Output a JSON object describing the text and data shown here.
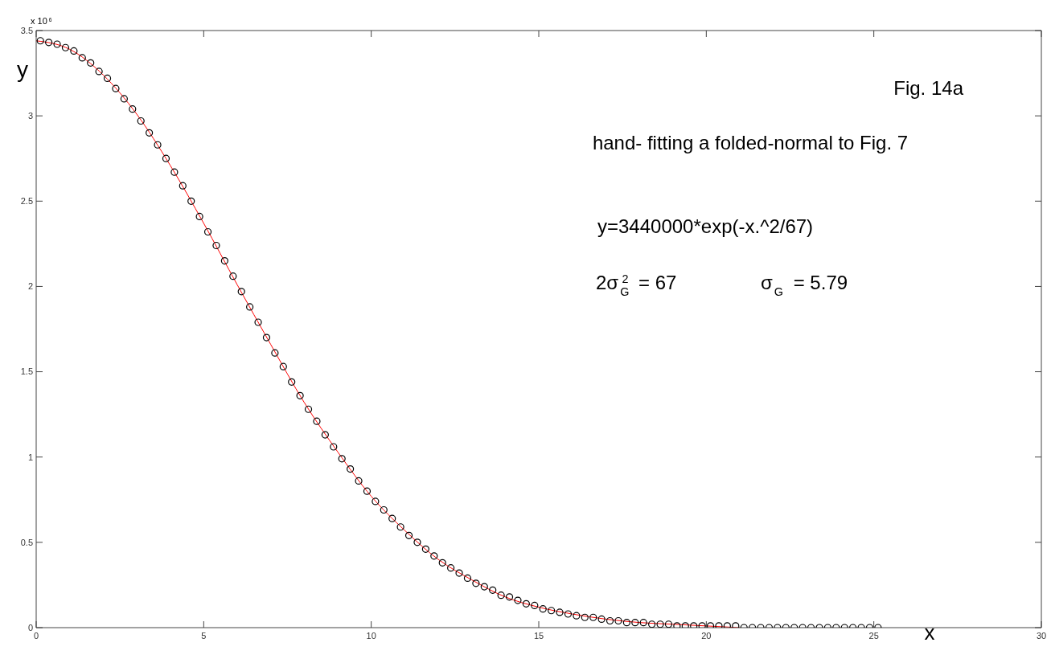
{
  "chart_data": {
    "type": "scatter",
    "xlabel": "x",
    "ylabel": "y",
    "xlim": [
      0,
      30
    ],
    "xticks": [
      0,
      5,
      10,
      15,
      20,
      25,
      30
    ],
    "ylim": [
      0,
      3.5
    ],
    "yticks": [
      0,
      0.5,
      1,
      1.5,
      2,
      2.5,
      3,
      3.5
    ],
    "grid": false,
    "legend": false,
    "marker": "circle",
    "annotations": [
      "x 10$^{6}$",
      "Fig. 14a",
      "hand- fitting a folded-normal to Fig. 7",
      "y=3440000*exp(-x.^2/67)",
      "2σ$_{G}$$^{2}$ = 67",
      "σ$_{G}$ = 5.79"
    ],
    "series": [
      {
        "type": "line",
        "color": "#ff0000",
        "line_style": "solid",
        "marker": "none",
        "x": [
          0,
          1,
          2,
          3,
          4,
          5,
          6,
          7,
          8,
          9,
          10,
          11,
          12,
          13,
          14,
          15,
          16,
          17,
          18,
          19,
          20,
          21
        ],
        "values": [
          3.44,
          3.39,
          3.24,
          3.01,
          2.71,
          2.37,
          2.01,
          1.66,
          1.32,
          1.03,
          0.77,
          0.57,
          0.4,
          0.28,
          0.18,
          0.12,
          0.08,
          0.05,
          0.03,
          0.02,
          0.01,
          0
        ]
      },
      {
        "color": "#000000",
        "x": [
          0.125,
          0.375,
          0.625,
          0.875,
          1.125,
          1.375,
          1.625,
          1.875,
          2.125,
          2.375,
          2.625,
          2.875,
          3.125,
          3.375,
          3.625,
          3.875,
          4.125,
          4.375,
          4.625,
          4.875,
          5.125,
          5.375,
          5.625,
          5.875,
          6.125,
          6.375,
          6.625,
          6.875,
          7.125,
          7.375,
          7.625,
          7.875,
          8.125,
          8.375,
          8.625,
          8.875,
          9.125,
          9.375,
          9.625,
          9.875,
          10.125,
          10.375,
          10.625,
          10.875,
          11.125,
          11.375,
          11.625,
          11.875,
          12.125,
          12.375,
          12.625,
          12.875,
          13.125,
          13.375,
          13.625,
          13.875,
          14.125,
          14.375,
          14.625,
          14.875,
          15.125,
          15.375,
          15.625,
          15.875,
          16.125,
          16.375,
          16.625,
          16.875,
          17.125,
          17.375,
          17.625,
          17.875,
          18.125,
          18.375,
          18.625,
          18.875,
          19.125,
          19.375,
          19.625,
          19.875,
          20.125,
          20.375,
          20.625,
          20.875,
          21.125,
          21.375,
          21.625,
          21.875,
          22.125,
          22.375,
          22.625,
          22.875,
          23.125,
          23.375,
          23.625,
          23.875,
          24.125,
          24.375,
          24.625,
          24.875,
          25.125
        ],
        "values": [
          3.44,
          3.43,
          3.42,
          3.4,
          3.38,
          3.34,
          3.31,
          3.26,
          3.22,
          3.16,
          3.1,
          3.04,
          2.97,
          2.9,
          2.83,
          2.75,
          2.67,
          2.59,
          2.5,
          2.41,
          2.32,
          2.24,
          2.15,
          2.06,
          1.97,
          1.88,
          1.79,
          1.7,
          1.61,
          1.53,
          1.44,
          1.36,
          1.28,
          1.21,
          1.13,
          1.06,
          0.99,
          0.93,
          0.86,
          0.8,
          0.74,
          0.69,
          0.64,
          0.59,
          0.54,
          0.5,
          0.46,
          0.42,
          0.38,
          0.35,
          0.32,
          0.29,
          0.26,
          0.24,
          0.22,
          0.19,
          0.18,
          0.16,
          0.14,
          0.13,
          0.11,
          0.1,
          0.09,
          0.08,
          0.07,
          0.06,
          0.06,
          0.05,
          0.04,
          0.04,
          0.03,
          0.03,
          0.03,
          0.02,
          0.02,
          0.02,
          0.01,
          0.01,
          0.01,
          0.01,
          0.01,
          0.01,
          0.01,
          0.01,
          0,
          0,
          0,
          0,
          0,
          0,
          0,
          0,
          0,
          0,
          0,
          0,
          0,
          0,
          0,
          0,
          0
        ]
      }
    ]
  }
}
